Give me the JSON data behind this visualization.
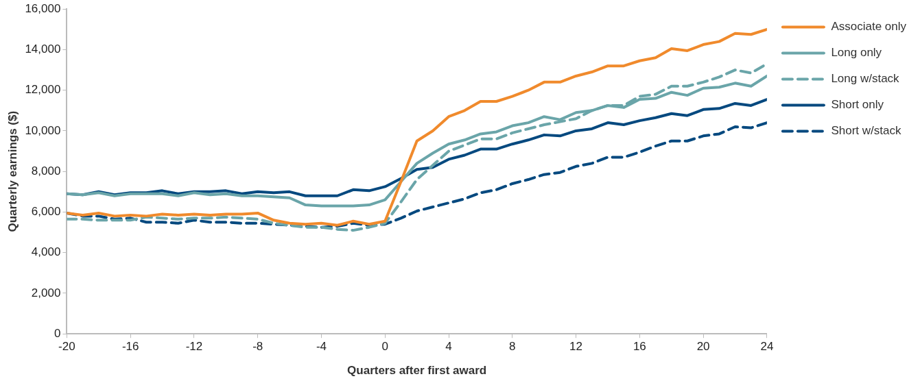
{
  "chart_data": {
    "type": "line",
    "xlabel": "Quarters after first award",
    "ylabel": "Quarterly earnings ($)",
    "x": [
      -20,
      -19,
      -18,
      -17,
      -16,
      -15,
      -14,
      -13,
      -12,
      -11,
      -10,
      -9,
      -8,
      -7,
      -6,
      -5,
      -4,
      -3,
      -2,
      -1,
      0,
      1,
      2,
      3,
      4,
      5,
      6,
      7,
      8,
      9,
      10,
      11,
      12,
      13,
      14,
      15,
      16,
      17,
      18,
      19,
      20,
      21,
      22,
      23,
      24
    ],
    "xlim": [
      -20,
      24
    ],
    "xticks": [
      -20,
      -16,
      -12,
      -8,
      -4,
      0,
      4,
      8,
      12,
      16,
      20,
      24
    ],
    "ylim": [
      0,
      16000
    ],
    "yticks": [
      {
        "value": 0,
        "label": "0"
      },
      {
        "value": 2000,
        "label": "2,000"
      },
      {
        "value": 4000,
        "label": "4,000"
      },
      {
        "value": 6000,
        "label": "6,000"
      },
      {
        "value": 8000,
        "label": "8,000"
      },
      {
        "value": 10000,
        "label": "10,000"
      },
      {
        "value": 12000,
        "label": "12,000"
      },
      {
        "value": 14000,
        "label": "14,000"
      },
      {
        "value": 16000,
        "label": "16,000"
      }
    ],
    "grid": false,
    "legend": "right",
    "marker": "none",
    "series": [
      {
        "name": "Associate only",
        "color": "#f08a2c",
        "line_style": "solid",
        "values": [
          5950,
          5850,
          5950,
          5800,
          5850,
          5800,
          5900,
          5850,
          5900,
          5850,
          5900,
          5900,
          5950,
          5600,
          5450,
          5400,
          5450,
          5350,
          5550,
          5400,
          5550,
          7500,
          9500,
          10000,
          10700,
          11000,
          11450,
          11450,
          11700,
          12000,
          12400,
          12400,
          12700,
          12900,
          13200,
          13200,
          13450,
          13600,
          14050,
          13950,
          14250,
          14400,
          14800,
          14750,
          15000
        ]
      },
      {
        "name": "Long only",
        "color": "#6aa5a9",
        "line_style": "solid",
        "values": [
          6900,
          6850,
          6950,
          6800,
          6900,
          6900,
          6900,
          6800,
          6950,
          6850,
          6900,
          6800,
          6800,
          6750,
          6700,
          6350,
          6300,
          6300,
          6300,
          6350,
          6600,
          7500,
          8400,
          8900,
          9350,
          9550,
          9850,
          9950,
          10250,
          10400,
          10700,
          10550,
          10900,
          11000,
          11250,
          11150,
          11550,
          11600,
          11900,
          11750,
          12100,
          12150,
          12350,
          12200,
          12700
        ]
      },
      {
        "name": "Long w/stack",
        "color": "#6aa5a9",
        "line_style": "dashed",
        "values": [
          5650,
          5650,
          5600,
          5600,
          5600,
          5750,
          5700,
          5650,
          5700,
          5700,
          5750,
          5700,
          5650,
          5450,
          5350,
          5250,
          5250,
          5150,
          5100,
          5250,
          5450,
          6500,
          7600,
          8300,
          9000,
          9300,
          9600,
          9600,
          9900,
          10100,
          10300,
          10450,
          10600,
          11000,
          11250,
          11250,
          11700,
          11800,
          12200,
          12200,
          12400,
          12650,
          13000,
          12850,
          13300
        ]
      },
      {
        "name": "Short only",
        "color": "#05497f",
        "line_style": "solid",
        "values": [
          6900,
          6850,
          7000,
          6850,
          6950,
          6950,
          7050,
          6900,
          7000,
          7000,
          7050,
          6900,
          7000,
          6950,
          7000,
          6800,
          6800,
          6800,
          7100,
          7050,
          7250,
          7650,
          8100,
          8200,
          8600,
          8800,
          9100,
          9100,
          9350,
          9550,
          9800,
          9750,
          10000,
          10100,
          10400,
          10300,
          10500,
          10650,
          10850,
          10750,
          11050,
          11100,
          11350,
          11250,
          11550
        ]
      },
      {
        "name": "Short w/stack",
        "color": "#05497f",
        "line_style": "dashed",
        "values": [
          5950,
          5800,
          5800,
          5650,
          5700,
          5500,
          5500,
          5450,
          5600,
          5500,
          5500,
          5450,
          5450,
          5400,
          5350,
          5300,
          5250,
          5300,
          5450,
          5350,
          5400,
          5700,
          6050,
          6250,
          6450,
          6650,
          6950,
          7100,
          7400,
          7600,
          7850,
          7950,
          8250,
          8400,
          8700,
          8700,
          8950,
          9250,
          9500,
          9500,
          9750,
          9850,
          10200,
          10150,
          10400
        ]
      }
    ]
  }
}
